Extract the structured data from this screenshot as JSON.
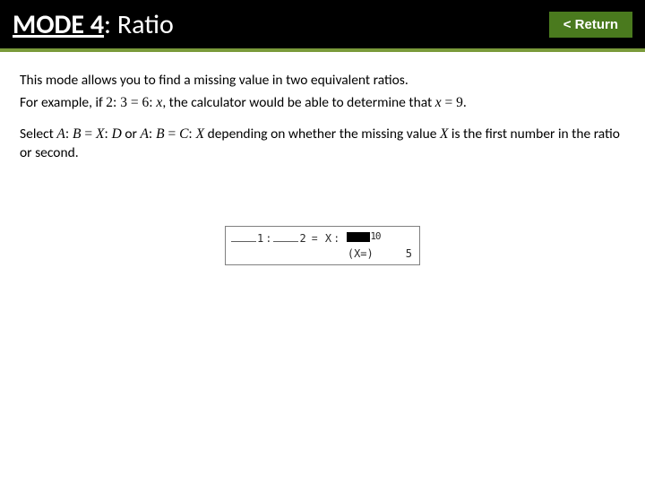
{
  "header": {
    "mode_label": "MODE 4",
    "title_rest": ": Ratio",
    "return_label": "< Return"
  },
  "body": {
    "line1": "This mode allows you to find a missing value in two equivalent ratios.",
    "line2_pre": "For example, if ",
    "ex_a": "2",
    "ex_b": "3",
    "ex_c": "6",
    "ex_x": "x",
    "line2_mid": ", the calculator would be able to determine that ",
    "ex_sol_lhs": "x",
    "ex_sol_rhs": "9",
    "period": ".",
    "line3_pre": "Select ",
    "optA_A": "A",
    "optA_B": "B",
    "optA_X": "X",
    "optA_D": "D",
    "or": " or ",
    "optB_A": "A",
    "optB_B": "B",
    "optB_C": "C",
    "optB_X": "X",
    "line3_post": " depending on whether the missing value ",
    "missing_X": "X",
    "line3_tail": " is the first number in the ratio or second."
  },
  "lcd": {
    "d1": "1",
    "d2": "2",
    "var_X": "X",
    "tail_glyphs": "10",
    "result_label": "(X=)",
    "result_value": "5"
  },
  "style": {
    "header_bg": "#000000",
    "accent": "#7a9a3a",
    "btn_bg": "#4a7a1e",
    "text": "#000000",
    "lcd_border": "#808080",
    "page_bg": "#ffffff",
    "title_fontsize": 30,
    "body_fontsize": 15.5
  }
}
